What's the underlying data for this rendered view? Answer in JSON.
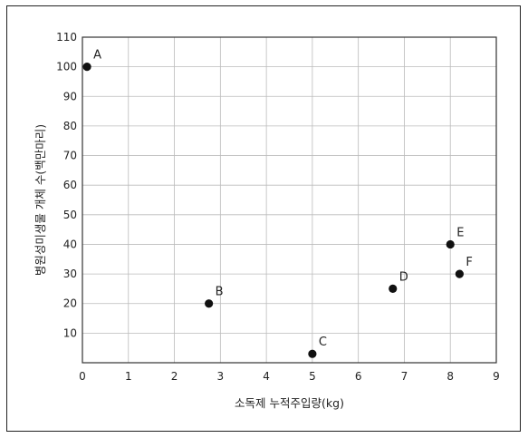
{
  "chart_data": {
    "type": "scatter",
    "title": "",
    "xlabel": "소독제 누적주입량(kg)",
    "ylabel": "병원성미생물 개체 수(백만마리)",
    "xlim": [
      0,
      9
    ],
    "ylim": [
      0,
      110
    ],
    "x_ticks": [
      0,
      1,
      2,
      3,
      4,
      5,
      6,
      7,
      8,
      9
    ],
    "y_ticks": [
      10,
      20,
      30,
      40,
      50,
      60,
      70,
      80,
      90,
      100,
      110
    ],
    "grid": true,
    "points": [
      {
        "label": "A",
        "x": 0.1,
        "y": 100
      },
      {
        "label": "B",
        "x": 2.75,
        "y": 20
      },
      {
        "label": "C",
        "x": 5.0,
        "y": 3
      },
      {
        "label": "D",
        "x": 6.75,
        "y": 25
      },
      {
        "label": "E",
        "x": 8.0,
        "y": 40
      },
      {
        "label": "F",
        "x": 8.2,
        "y": 30
      }
    ],
    "marker_color": "#111111",
    "grid_color": "#bbbbbb"
  }
}
